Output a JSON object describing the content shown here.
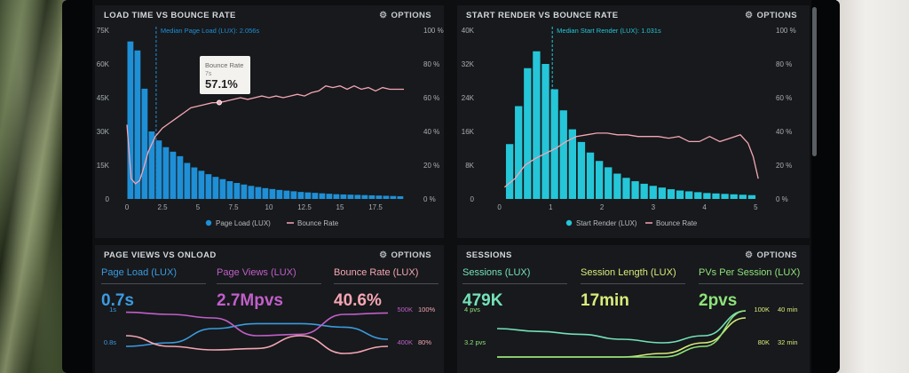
{
  "panels": {
    "load_time": {
      "title": "LOAD TIME VS BOUNCE RATE",
      "options": "OPTIONS"
    },
    "start_render": {
      "title": "START RENDER VS BOUNCE RATE",
      "options": "OPTIONS"
    },
    "page_views": {
      "title": "PAGE VIEWS VS ONLOAD",
      "options": "OPTIONS"
    },
    "sessions": {
      "title": "SESSIONS",
      "options": "OPTIONS"
    }
  },
  "colors": {
    "blue": "#1f8fd6",
    "cyan": "#25c6d8",
    "pink": "#f5a6b4",
    "purple": "#c15fc9",
    "mint": "#74e2b8",
    "yellow": "#d8ec7a",
    "green": "#8fe27a"
  },
  "page_views_metrics": [
    {
      "label": "Page Load (LUX)",
      "value": "0.7s",
      "color": "#3b9be0"
    },
    {
      "label": "Page Views (LUX)",
      "value": "2.7Mpvs",
      "color": "#c15fc9"
    },
    {
      "label": "Bounce Rate (LUX)",
      "value": "40.6%",
      "color": "#f5a6b4"
    }
  ],
  "sessions_metrics": [
    {
      "label": "Sessions (LUX)",
      "value": "479K",
      "color": "#74e2b8"
    },
    {
      "label": "Session Length (LUX)",
      "value": "17min",
      "color": "#d8ec7a"
    },
    {
      "label": "PVs Per Session (LUX)",
      "value": "2pvs",
      "color": "#8fe27a"
    }
  ],
  "chart_data": [
    {
      "type": "bar",
      "title": "LOAD TIME VS BOUNCE RATE",
      "annotation": "Median Page Load (LUX): 2.056s",
      "median_x": 2.056,
      "tooltip": {
        "title": "Bounce Rate",
        "sub": "7s",
        "value": "57.1%"
      },
      "xlim": [
        0,
        20
      ],
      "x_ticks": [
        "0",
        "2.5",
        "5",
        "7.5",
        "10",
        "12.5",
        "15",
        "17.5"
      ],
      "x_tick_values": [
        0,
        2.5,
        5,
        7.5,
        10,
        12.5,
        15,
        17.5
      ],
      "y_left_ticks": [
        "0",
        "15K",
        "30K",
        "45K",
        "60K",
        "75K"
      ],
      "ylim_left": [
        0,
        75000
      ],
      "y_right_ticks": [
        "0 %",
        "20 %",
        "40 %",
        "60 %",
        "80 %",
        "100 %"
      ],
      "ylim_right": [
        0,
        100
      ],
      "bar_width": 0.5,
      "series": [
        {
          "name": "Page Load (LUX)",
          "x": [
            0.25,
            0.75,
            1.25,
            1.75,
            2.25,
            2.75,
            3.25,
            3.75,
            4.25,
            4.75,
            5.25,
            5.75,
            6.25,
            6.75,
            7.25,
            7.75,
            8.25,
            8.75,
            9.25,
            9.75,
            10.25,
            10.75,
            11.25,
            11.75,
            12.25,
            12.75,
            13.25,
            13.75,
            14.25,
            14.75,
            15.25,
            15.75,
            16.25,
            16.75,
            17.25,
            17.75,
            18.25,
            18.75,
            19.25
          ],
          "values": [
            70000,
            66000,
            49000,
            30000,
            26000,
            23000,
            21000,
            19000,
            16000,
            14000,
            12500,
            11000,
            9800,
            8800,
            7900,
            7100,
            6400,
            5800,
            5300,
            4800,
            4400,
            4000,
            3700,
            3400,
            3100,
            2900,
            2700,
            2500,
            2300,
            2100,
            2000,
            1900,
            1800,
            1700,
            1600,
            1500,
            1400,
            1300,
            1200
          ]
        },
        {
          "name": "Bounce Rate",
          "axis": "right",
          "x": [
            0,
            0.3,
            0.6,
            0.9,
            1.2,
            1.5,
            2,
            2.5,
            3,
            3.5,
            4,
            4.5,
            5,
            5.5,
            6,
            6.5,
            7,
            7.5,
            8,
            8.5,
            9,
            9.5,
            10,
            10.5,
            11,
            11.5,
            12,
            12.5,
            13,
            13.5,
            14,
            14.5,
            15,
            15.5,
            16,
            16.5,
            17,
            17.5,
            18,
            18.5,
            19,
            19.5
          ],
          "values": [
            44,
            12,
            9,
            11,
            19,
            28,
            37,
            42,
            45,
            48,
            51,
            54,
            55,
            56,
            57,
            57.1,
            58,
            59,
            60,
            59,
            60,
            61,
            60,
            61,
            60,
            61,
            62,
            61,
            63,
            64,
            67,
            66,
            67,
            65,
            67,
            65,
            66,
            64,
            66,
            65,
            65,
            65
          ]
        }
      ]
    },
    {
      "type": "bar",
      "title": "START RENDER VS BOUNCE RATE",
      "annotation": "Median Start Render (LUX): 1.031s",
      "median_x": 1.031,
      "xlim": [
        -0.15,
        5.15
      ],
      "x_ticks": [
        "0",
        "1",
        "2",
        "3",
        "4",
        "5"
      ],
      "x_tick_values": [
        0,
        1,
        2,
        3,
        4,
        5
      ],
      "y_left_ticks": [
        "0",
        "8K",
        "16K",
        "24K",
        "32K",
        "40K"
      ],
      "ylim_left": [
        0,
        40000
      ],
      "y_right_ticks": [
        "0 %",
        "20 %",
        "40 %",
        "60 %",
        "80 %",
        "100 %"
      ],
      "ylim_right": [
        0,
        100
      ],
      "bar_width": 0.165,
      "series": [
        {
          "name": "Start Render (LUX)",
          "x": [
            0.2,
            0.375,
            0.55,
            0.725,
            0.9,
            1.075,
            1.25,
            1.425,
            1.6,
            1.775,
            1.95,
            2.125,
            2.3,
            2.475,
            2.65,
            2.825,
            3.0,
            3.175,
            3.35,
            3.525,
            3.7,
            3.875,
            4.05,
            4.225,
            4.4,
            4.575,
            4.75,
            4.925
          ],
          "values": [
            13000,
            22000,
            31000,
            35000,
            32000,
            26000,
            21000,
            16500,
            13500,
            11000,
            9000,
            7500,
            6000,
            5000,
            4200,
            3600,
            3100,
            2700,
            2300,
            2000,
            1800,
            1600,
            1400,
            1300,
            1200,
            1100,
            1000,
            900
          ]
        },
        {
          "name": "Bounce Rate",
          "axis": "right",
          "x": [
            0.1,
            0.3,
            0.5,
            0.7,
            0.9,
            1.1,
            1.3,
            1.5,
            1.7,
            1.9,
            2.1,
            2.3,
            2.5,
            2.7,
            2.9,
            3.1,
            3.3,
            3.5,
            3.7,
            3.9,
            4.1,
            4.3,
            4.5,
            4.7,
            4.85,
            4.95,
            5.05
          ],
          "values": [
            7,
            12,
            20,
            24,
            27,
            30,
            34,
            37,
            38,
            39,
            39,
            38,
            38,
            37,
            37,
            37,
            36,
            37,
            34,
            34,
            37,
            34,
            36,
            38,
            33,
            25,
            12
          ]
        }
      ]
    },
    {
      "type": "line",
      "title": "PAGE VIEWS VS ONLOAD",
      "y_left_ticks": [
        "1s",
        "0.8s"
      ],
      "y_right_ticks": [
        "500K",
        "400K"
      ],
      "y_right2_ticks": [
        "100%",
        "80%"
      ],
      "series": [
        {
          "name": "Page Load (LUX)",
          "x": [
            0,
            1,
            2,
            3,
            4,
            5,
            6
          ],
          "values": [
            0.45,
            0.5,
            0.7,
            0.77,
            0.77,
            0.72,
            0.55
          ]
        },
        {
          "name": "Page Views (LUX)",
          "x": [
            0,
            1,
            2,
            3,
            4,
            5,
            6
          ],
          "values": [
            0.93,
            0.9,
            0.85,
            0.6,
            0.62,
            0.9,
            0.92
          ]
        },
        {
          "name": "Bounce Rate (LUX)",
          "x": [
            0,
            1,
            2,
            3,
            4,
            5,
            6
          ],
          "values": [
            0.6,
            0.45,
            0.4,
            0.42,
            0.6,
            0.35,
            0.45
          ]
        }
      ]
    },
    {
      "type": "line",
      "title": "SESSIONS",
      "y_left_ticks": [
        "4 pvs",
        "3.2 pvs"
      ],
      "y_right_ticks": [
        "100K",
        "80K"
      ],
      "y_right2_ticks": [
        "40 min",
        "32 min"
      ],
      "series": [
        {
          "name": "Sessions (LUX)",
          "x": [
            0,
            1,
            2,
            3,
            4,
            5,
            6
          ],
          "values": [
            0.7,
            0.66,
            0.62,
            0.55,
            0.5,
            0.6,
            0.95
          ]
        },
        {
          "name": "Session Length (LUX)",
          "x": [
            0,
            1,
            2,
            3,
            4,
            5,
            6
          ],
          "values": [
            0.3,
            0.3,
            0.3,
            0.3,
            0.35,
            0.5,
            0.85
          ]
        },
        {
          "name": "PVs Per Session (LUX)",
          "x": [
            0,
            1,
            2,
            3,
            4,
            5,
            6
          ],
          "values": [
            0.3,
            0.3,
            0.3,
            0.3,
            0.3,
            0.45,
            0.95
          ]
        }
      ]
    }
  ]
}
